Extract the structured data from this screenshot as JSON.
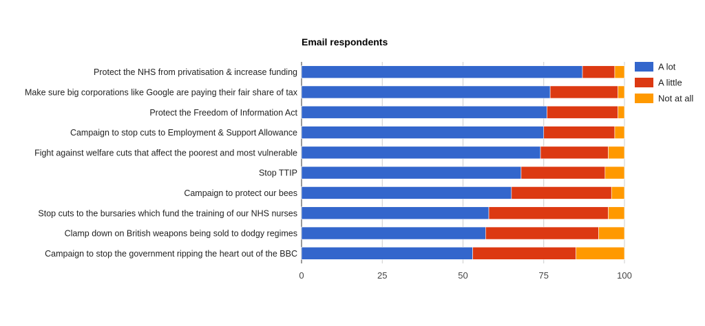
{
  "chart_data": {
    "type": "bar",
    "orientation": "horizontal",
    "stacked": true,
    "title": "Email respondents",
    "xlabel": "",
    "ylabel": "",
    "xlim": [
      0,
      100
    ],
    "xticks": [
      "0",
      "25",
      "50",
      "75",
      "100"
    ],
    "xtick_values": [
      0,
      25,
      50,
      75,
      100
    ],
    "grid": true,
    "legend_position": "right",
    "categories": [
      "Protect the NHS from privatisation & increase funding",
      "Make sure big corporations like Google are paying their fair share of tax",
      "Protect the Freedom of Information Act",
      "Campaign to stop cuts to Employment & Support Allowance",
      "Fight against welfare cuts that affect the poorest and most vulnerable",
      "Stop TTIP",
      "Campaign to protect our bees",
      "Stop cuts to the bursaries which fund the training of our NHS nurses",
      "Clamp down on British weapons being sold to dodgy regimes",
      "Campaign to stop the government ripping the heart out of the BBC"
    ],
    "series": [
      {
        "name": "A lot",
        "color": "#3366cc",
        "values": [
          87,
          77,
          76,
          75,
          74,
          68,
          65,
          58,
          57,
          53
        ]
      },
      {
        "name": "A little",
        "color": "#dc3912",
        "values": [
          10,
          21,
          22,
          22,
          21,
          26,
          31,
          37,
          35,
          32
        ]
      },
      {
        "name": "Not at all",
        "color": "#ff9900",
        "values": [
          3,
          2,
          2,
          3,
          5,
          6,
          4,
          5,
          8,
          15
        ]
      }
    ]
  }
}
